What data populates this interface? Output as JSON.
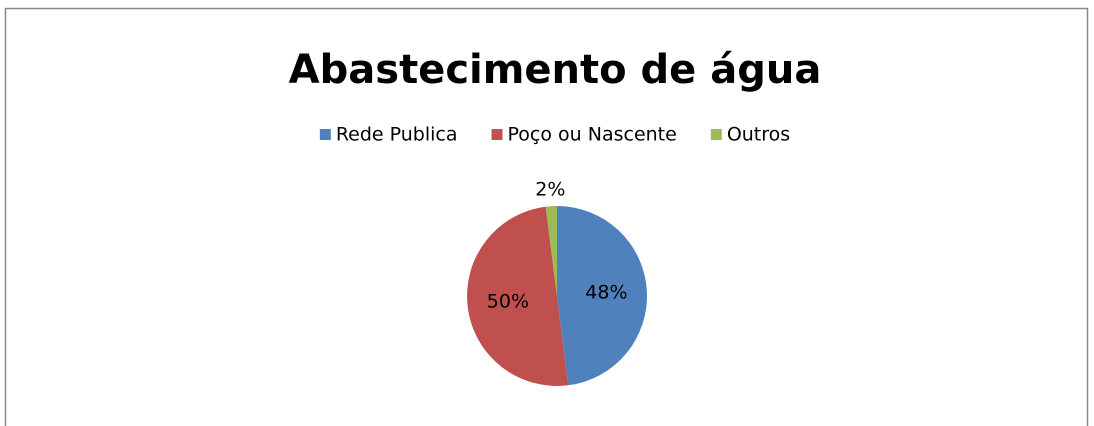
{
  "chart_data": {
    "type": "pie",
    "title": "Abastecimento de água",
    "categories": [
      "Rede Publica",
      "Poço ou Nascente",
      "Outros"
    ],
    "values": [
      48,
      50,
      2
    ],
    "value_labels": [
      "48%",
      "50%",
      "2%"
    ],
    "colors": [
      "#4f81bd",
      "#c0504d",
      "#9bbb59"
    ],
    "legend": "top"
  }
}
